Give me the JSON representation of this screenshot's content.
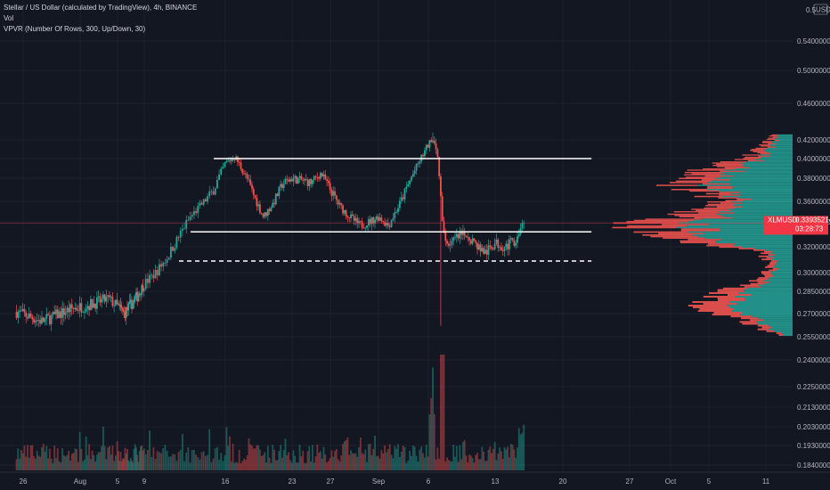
{
  "legend": {
    "title": "Stellar / US Dollar (calculated by TradingView), 4h, BINANCE",
    "vol": "Vol",
    "vpvr": "VPVR (Number Of Rows, 300, Up/Down, 30)"
  },
  "price_axis": {
    "currency": "USD",
    "current_symbol": "XLMUSD",
    "current_price": "0.33935214",
    "countdown": "03:28:73"
  },
  "colors": {
    "background": "#131722",
    "up": "#26a69a",
    "down": "#ef5350",
    "level_line": "#ffffff",
    "grid": "#1e222d",
    "current_price": "#f23645"
  },
  "chart_data": {
    "type": "candlestick",
    "title": "Stellar / US Dollar (calculated by TradingView), 4h, BINANCE",
    "y_ticks": [
      "0.18400000",
      "0.19300000",
      "0.20300000",
      "0.21300000",
      "0.22500000",
      "0.24000000",
      "0.25500000",
      "0.27000000",
      "0.28500000",
      "0.30000000",
      "0.32000000",
      "0.34000000",
      "0.36000000",
      "0.38000000",
      "0.40000000",
      "0.42000000",
      "0.46000000",
      "0.50000000",
      "0.54000000"
    ],
    "y_tick_values": [
      0.184,
      0.193,
      0.203,
      0.213,
      0.225,
      0.24,
      0.255,
      0.27,
      0.285,
      0.3,
      0.32,
      0.34,
      0.36,
      0.38,
      0.4,
      0.42,
      0.46,
      0.5,
      0.54
    ],
    "y_top_label": "0.5",
    "x_ticks": [
      "26",
      "Aug",
      "5",
      "9",
      "16",
      "23",
      "27",
      "Sep",
      "6",
      "13",
      "20",
      "27",
      "Oct",
      "5",
      "11"
    ],
    "x_tick_days": [
      -6,
      0,
      4,
      8,
      15,
      22,
      26,
      31,
      36,
      43,
      50,
      57,
      61,
      66,
      72
    ],
    "x_range_days": [
      -7,
      75
    ],
    "last_bar_day": 46,
    "price_path": [
      [
        -7,
        0.272
      ],
      [
        -4,
        0.265
      ],
      [
        -1,
        0.273
      ],
      [
        1,
        0.276
      ],
      [
        3,
        0.28
      ],
      [
        5,
        0.27
      ],
      [
        7,
        0.282
      ],
      [
        9,
        0.3
      ],
      [
        10,
        0.312
      ],
      [
        12,
        0.345
      ],
      [
        14,
        0.37
      ],
      [
        15,
        0.395
      ],
      [
        16,
        0.402
      ],
      [
        17,
        0.385
      ],
      [
        18,
        0.365
      ],
      [
        19,
        0.345
      ],
      [
        20,
        0.358
      ],
      [
        21,
        0.375
      ],
      [
        22,
        0.38
      ],
      [
        24,
        0.376
      ],
      [
        25,
        0.385
      ],
      [
        26,
        0.37
      ],
      [
        27,
        0.355
      ],
      [
        28,
        0.345
      ],
      [
        29,
        0.337
      ],
      [
        30,
        0.34
      ],
      [
        31,
        0.345
      ],
      [
        32,
        0.337
      ],
      [
        33,
        0.355
      ],
      [
        34,
        0.375
      ],
      [
        35,
        0.395
      ],
      [
        36,
        0.415
      ],
      [
        36.5,
        0.42
      ],
      [
        37,
        0.4
      ],
      [
        37.5,
        0.335
      ],
      [
        38,
        0.322
      ],
      [
        39,
        0.327
      ],
      [
        40,
        0.33
      ],
      [
        41,
        0.322
      ],
      [
        42,
        0.315
      ],
      [
        43,
        0.323
      ],
      [
        44,
        0.32
      ],
      [
        45,
        0.325
      ],
      [
        46,
        0.339
      ]
    ],
    "annotations": [
      {
        "type": "hline",
        "style": "solid",
        "price": 0.4,
        "from_day": 14,
        "to_day": 53
      },
      {
        "type": "hline",
        "style": "solid",
        "price": 0.332,
        "from_day": 12,
        "to_day": 53
      },
      {
        "type": "hline",
        "style": "dashed",
        "price": 0.309,
        "from_day": 11,
        "to_day": 53
      }
    ],
    "volume_profile": [
      {
        "price": 0.425,
        "up": 14,
        "down": 6
      },
      {
        "price": 0.405,
        "up": 28,
        "down": 14
      },
      {
        "price": 0.39,
        "up": 55,
        "down": 32
      },
      {
        "price": 0.375,
        "up": 95,
        "down": 42
      },
      {
        "price": 0.36,
        "up": 55,
        "down": 20
      },
      {
        "price": 0.345,
        "up": 75,
        "down": 50
      },
      {
        "price": 0.337,
        "up": 110,
        "down": 62
      },
      {
        "price": 0.325,
        "up": 85,
        "down": 40
      },
      {
        "price": 0.315,
        "up": 25,
        "down": 10
      },
      {
        "price": 0.305,
        "up": 18,
        "down": 8
      },
      {
        "price": 0.295,
        "up": 22,
        "down": 10
      },
      {
        "price": 0.283,
        "up": 55,
        "down": 30
      },
      {
        "price": 0.275,
        "up": 70,
        "down": 42
      },
      {
        "price": 0.265,
        "up": 38,
        "down": 18
      },
      {
        "price": 0.255,
        "up": 10,
        "down": 4
      }
    ]
  }
}
